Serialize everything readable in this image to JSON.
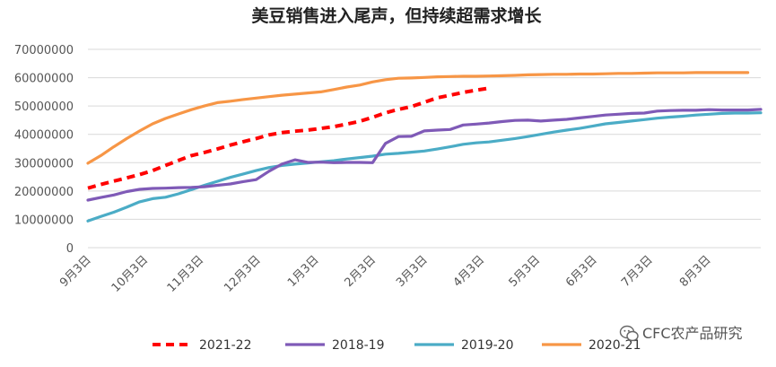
{
  "watermark": "CFC农产品研究",
  "chart_data": {
    "type": "line",
    "title": "美豆销售进入尾声，但持续超需求增长",
    "xlabel": "",
    "ylabel": "",
    "ylim": [
      0,
      70000000
    ],
    "y_ticks": [
      "70000000",
      "60000000",
      "50000000",
      "40000000",
      "30000000",
      "20000000",
      "10000000",
      "0"
    ],
    "y_tick_values": [
      70000000,
      60000000,
      50000000,
      40000000,
      30000000,
      20000000,
      10000000,
      0
    ],
    "x_tick_labels": [
      "9月3日",
      "10月3日",
      "11月3日",
      "12月3日",
      "1月3日",
      "2月3日",
      "3月3日",
      "4月3日",
      "5月3日",
      "6月3日",
      "7月3日",
      "8月3日"
    ],
    "x_range_weeks": [
      0,
      52
    ],
    "x_tick_positions_weeks": [
      0,
      4.4,
      8.7,
      13.1,
      17.6,
      22,
      26,
      30.4,
      34.7,
      39.1,
      43.4,
      47.9
    ],
    "grid": true,
    "legend_position": "bottom",
    "series": [
      {
        "name": "2021-22",
        "color": "#ff0000",
        "dashed": true,
        "x": [
          0,
          1,
          2,
          3,
          4,
          5,
          6,
          7,
          8,
          9,
          10,
          11,
          12,
          13,
          14,
          15,
          16,
          17,
          18,
          19,
          20,
          21,
          22,
          23,
          24,
          25,
          26,
          27,
          28,
          29,
          30,
          31
        ],
        "values": [
          21000000,
          22300000,
          23500000,
          24600000,
          25800000,
          27200000,
          29000000,
          30800000,
          32500000,
          33600000,
          34800000,
          36200000,
          37400000,
          38500000,
          39800000,
          40600000,
          41100000,
          41500000,
          42100000,
          42700000,
          43600000,
          44600000,
          46000000,
          47600000,
          48800000,
          49800000,
          51300000,
          52900000,
          53800000,
          54800000,
          55600000,
          56300000
        ]
      },
      {
        "name": "2018-19",
        "color": "#7f5ab7",
        "dashed": false,
        "x": [
          0,
          1,
          2,
          3,
          4,
          5,
          6,
          7,
          8,
          9,
          10,
          11,
          12,
          13,
          14,
          15,
          16,
          17,
          18,
          19,
          20,
          21,
          22,
          23,
          24,
          25,
          26,
          27,
          28,
          29,
          30,
          31,
          32,
          33,
          34,
          35,
          36,
          37,
          38,
          39,
          40,
          41,
          42,
          43,
          44,
          45,
          46,
          47,
          48,
          49,
          50,
          51,
          52
        ],
        "values": [
          16800000,
          17700000,
          18600000,
          19800000,
          20600000,
          20900000,
          21000000,
          21200000,
          21300000,
          21500000,
          22000000,
          22500000,
          23300000,
          24000000,
          27000000,
          29500000,
          31000000,
          30100000,
          30200000,
          30000000,
          30100000,
          30100000,
          30000000,
          36800000,
          39200000,
          39300000,
          41200000,
          41500000,
          41700000,
          43300000,
          43600000,
          44000000,
          44500000,
          44900000,
          45000000,
          44700000,
          45000000,
          45300000,
          45800000,
          46300000,
          46800000,
          47100000,
          47400000,
          47500000,
          48200000,
          48400000,
          48500000,
          48500000,
          48700000,
          48600000,
          48600000,
          48600000,
          48800000
        ]
      },
      {
        "name": "2019-20",
        "color": "#4bacc6",
        "dashed": false,
        "x": [
          0,
          1,
          2,
          3,
          4,
          5,
          6,
          7,
          8,
          9,
          10,
          11,
          12,
          13,
          14,
          15,
          16,
          17,
          18,
          19,
          20,
          21,
          22,
          23,
          24,
          25,
          26,
          27,
          28,
          29,
          30,
          31,
          32,
          33,
          34,
          35,
          36,
          37,
          38,
          39,
          40,
          41,
          42,
          43,
          44,
          45,
          46,
          47,
          48,
          49,
          50,
          51,
          52
        ],
        "values": [
          9400000,
          11000000,
          12500000,
          14300000,
          16200000,
          17300000,
          17800000,
          19000000,
          20500000,
          22000000,
          23400000,
          24800000,
          26000000,
          27200000,
          28300000,
          29000000,
          29500000,
          29900000,
          30300000,
          30700000,
          31300000,
          31800000,
          32300000,
          33000000,
          33300000,
          33700000,
          34100000,
          34800000,
          35600000,
          36500000,
          37000000,
          37300000,
          37900000,
          38500000,
          39200000,
          40000000,
          40800000,
          41500000,
          42100000,
          42900000,
          43700000,
          44200000,
          44700000,
          45200000,
          45700000,
          46100000,
          46400000,
          46800000,
          47100000,
          47400000,
          47500000,
          47500000,
          47600000
        ]
      },
      {
        "name": "2020-21",
        "color": "#f79646",
        "dashed": false,
        "x": [
          0,
          1,
          2,
          3,
          4,
          5,
          6,
          7,
          8,
          9,
          10,
          11,
          12,
          13,
          14,
          15,
          16,
          17,
          18,
          19,
          20,
          21,
          22,
          23,
          24,
          25,
          26,
          27,
          28,
          29,
          30,
          31,
          32,
          33,
          34,
          35,
          36,
          37,
          38,
          39,
          40,
          41,
          42,
          43,
          44,
          45,
          46,
          47,
          48,
          49,
          50,
          51
        ],
        "values": [
          29800000,
          32500000,
          35600000,
          38500000,
          41200000,
          43700000,
          45600000,
          47200000,
          48700000,
          50000000,
          51200000,
          51700000,
          52300000,
          52800000,
          53300000,
          53800000,
          54200000,
          54600000,
          55000000,
          55800000,
          56700000,
          57400000,
          58500000,
          59300000,
          59800000,
          59900000,
          60100000,
          60300000,
          60400000,
          60500000,
          60500000,
          60600000,
          60700000,
          60800000,
          61000000,
          61100000,
          61200000,
          61200000,
          61300000,
          61300000,
          61400000,
          61500000,
          61500000,
          61600000,
          61700000,
          61700000,
          61700000,
          61800000,
          61800000,
          61800000,
          61800000,
          61800000
        ]
      }
    ]
  }
}
